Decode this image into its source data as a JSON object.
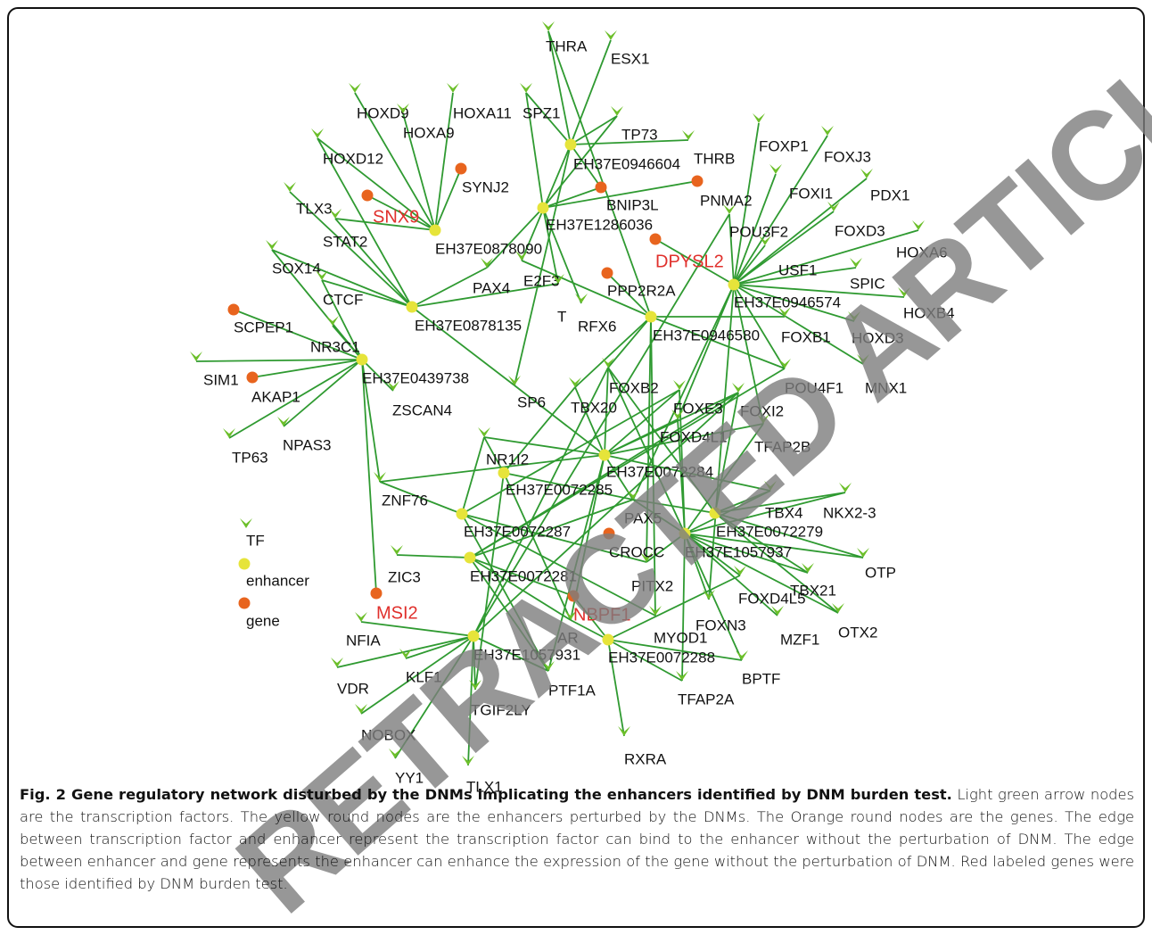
{
  "figure": {
    "tf_nodes": [
      "THRA",
      "ESX1",
      "HOXD9",
      "HOXA9",
      "HOXA11",
      "SPZ1",
      "TP73",
      "THRB",
      "FOXP1",
      "FOXJ3",
      "HOXD12",
      "TLX3",
      "FOXI1",
      "PDX1",
      "STAT2",
      "POU3F2",
      "FOXD3",
      "HOXA6",
      "SOX14",
      "USF1",
      "E2F3",
      "PAX4",
      "CTCF",
      "SPIC",
      "HOXB4",
      "T",
      "RFX6",
      "FOXB1",
      "HOXD3",
      "NR3C1",
      "SIM1",
      "POU4F1",
      "MNX1",
      "FOXB2",
      "ZSCAN4",
      "SP6",
      "TBX20",
      "FOXE3",
      "FOXI2",
      "FOXD4L1",
      "TFAP2B",
      "TP63",
      "NPAS3",
      "NR1I2",
      "ZNF76",
      "PAX5",
      "TBX4",
      "NKX2-3",
      "ZIC3",
      "PITX2",
      "OTP",
      "TBX21",
      "FOXD4L5",
      "FOXN3",
      "MZF1",
      "OTX2",
      "NFIA",
      "AR",
      "MYOD1",
      "BPTF",
      "VDR",
      "KLF1",
      "PTF1A",
      "TFAP2A",
      "TGIF2LY",
      "NOBOX",
      "RXRA",
      "YY1",
      "TLX1"
    ],
    "enhancer_nodes": [
      "EH37E0946604",
      "EH37E1286036",
      "EH37E0878090",
      "EH37E0946574",
      "EH37E0878135",
      "EH37E0946580",
      "EH37E0439738",
      "EH37E0072284",
      "EH37E0072285",
      "EH37E0072279",
      "EH37E0072287",
      "EH37E1057937",
      "EH37E0072281",
      "EH37E1057931",
      "EH37E0072288"
    ],
    "gene_nodes": [
      "SYNJ2",
      "BNIP3L",
      "PNMA2",
      "PPP2R2A",
      "SCPEP1",
      "AKAP1",
      "CROCC"
    ],
    "burden_test_genes": [
      "SNX9",
      "DPYSL2",
      "MSI2",
      "NBPF1"
    ],
    "legend": {
      "tf": "TF",
      "enhancer": "enhancer",
      "gene": "gene"
    }
  },
  "caption": {
    "title": "Fig. 2 Gene regulatory network disturbed by the DNMs implicating the enhancers identified by DNM burden test.",
    "text": "Light green arrow nodes are the transcription factors. The yellow round nodes are the enhancers perturbed by the DNMs. The Orange round nodes are the genes. The edge between transcription factor and enhancer represent the transcription factor can bind to the enhancer without the perturbation of DNM. The edge between enhancer and gene represents the enhancer can enhance the expression of the gene without the perturbation of DNM. Red labeled genes were those identified by DNM burden test."
  },
  "watermark": "RETRACTED ARTICLE"
}
